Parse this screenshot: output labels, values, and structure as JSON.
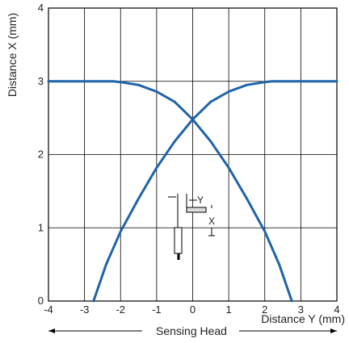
{
  "chart_data": {
    "type": "line",
    "title": "",
    "xlabel": "Distance Y (mm)",
    "ylabel": "Distance X (mm)",
    "xlim": [
      -4,
      4
    ],
    "ylim": [
      0,
      4
    ],
    "x_ticks": [
      "-4",
      "-3",
      "-2",
      "-1",
      "0",
      "1",
      "2",
      "3",
      "4"
    ],
    "y_ticks": [
      "0",
      "1",
      "2",
      "3",
      "4"
    ],
    "grid": true,
    "line_color": "#1f63a8",
    "series": [
      {
        "x": [
          -2.75,
          -2.4,
          -2.0,
          -1.5,
          -1.0,
          -0.5,
          0.0,
          0.5,
          1.0,
          1.5,
          2.0,
          2.2,
          2.5,
          3.0,
          3.5,
          4.0
        ],
        "y": [
          0.0,
          0.5,
          0.95,
          1.4,
          1.82,
          2.18,
          2.48,
          2.72,
          2.86,
          2.95,
          2.99,
          3.0,
          3.0,
          3.0,
          3.0,
          3.0
        ]
      },
      {
        "x": [
          -4.0,
          -3.5,
          -3.0,
          -2.5,
          -2.2,
          -2.0,
          -1.5,
          -1.0,
          -0.5,
          0.0,
          0.5,
          1.0,
          1.5,
          2.0,
          2.4,
          2.75
        ],
        "y": [
          3.0,
          3.0,
          3.0,
          3.0,
          3.0,
          2.99,
          2.95,
          2.86,
          2.72,
          2.48,
          2.18,
          1.82,
          1.4,
          0.95,
          0.5,
          0.0
        ]
      }
    ],
    "annotations": {
      "bottom_label": "Sensing Head",
      "inset_y_label": "Y",
      "inset_x_label": "X"
    }
  }
}
